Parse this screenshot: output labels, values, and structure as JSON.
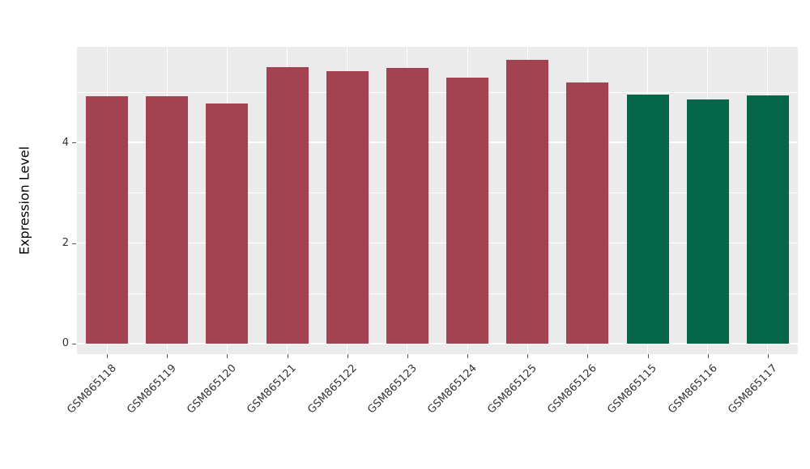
{
  "chart_data": {
    "type": "bar",
    "title": "",
    "xlabel": "",
    "ylabel": "Expression Level",
    "categories": [
      "GSM865118",
      "GSM865119",
      "GSM865120",
      "GSM865121",
      "GSM865122",
      "GSM865123",
      "GSM865124",
      "GSM865125",
      "GSM865126",
      "GSM865115",
      "GSM865116",
      "GSM865117"
    ],
    "values": [
      4.92,
      4.92,
      4.78,
      5.5,
      5.41,
      5.48,
      5.29,
      5.64,
      5.19,
      4.95,
      4.86,
      4.93
    ],
    "bar_colors": [
      "#A34352",
      "#A34352",
      "#A34352",
      "#A34352",
      "#A34352",
      "#A34352",
      "#A34352",
      "#A34352",
      "#A34352",
      "#066649",
      "#066649",
      "#066649"
    ],
    "ylim": [
      -0.21,
      5.9
    ],
    "yticks": [
      0,
      2,
      4
    ],
    "minor_yticks": [
      1,
      3,
      5
    ],
    "grid": "on",
    "legend": "none",
    "panel_background": "#EBEBEB",
    "grid_color": "#FFFFFF",
    "tick_label_color": "#333333"
  }
}
